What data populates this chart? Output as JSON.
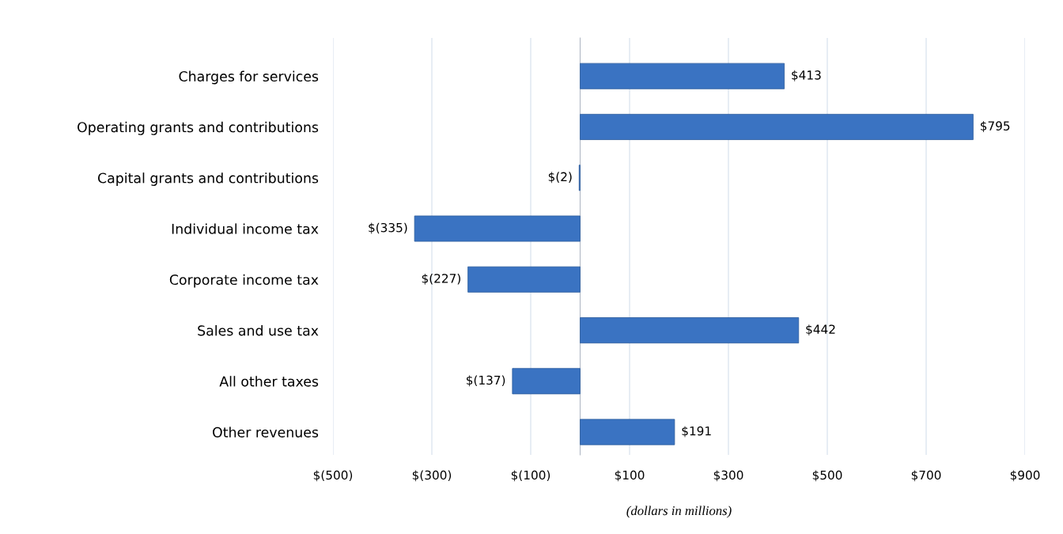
{
  "chart_data": {
    "type": "bar",
    "orientation": "horizontal",
    "categories": [
      "Charges for services",
      "Operating grants and contributions",
      "Capital grants and contributions",
      "Individual income tax",
      "Corporate income tax",
      "Sales and use tax",
      "All other taxes",
      "Other revenues"
    ],
    "values": [
      413,
      795,
      -2,
      -335,
      -227,
      442,
      -137,
      191
    ],
    "value_labels": [
      "$413",
      "$795",
      "$(2)",
      "$(335)",
      "$(227)",
      "$442",
      "$(137)",
      "$191"
    ],
    "color": "#3a73c2",
    "xlabel": "(dollars in millions)",
    "xlim": [
      -500,
      900
    ],
    "xticks": [
      {
        "value": -500,
        "label": "$(500)"
      },
      {
        "value": -300,
        "label": "$(300)"
      },
      {
        "value": -100,
        "label": "$(100)"
      },
      {
        "value": 100,
        "label": "$100"
      },
      {
        "value": 300,
        "label": "$300"
      },
      {
        "value": 500,
        "label": "$500"
      },
      {
        "value": 700,
        "label": "$700"
      },
      {
        "value": 900,
        "label": "$900"
      }
    ],
    "grid": "x"
  }
}
